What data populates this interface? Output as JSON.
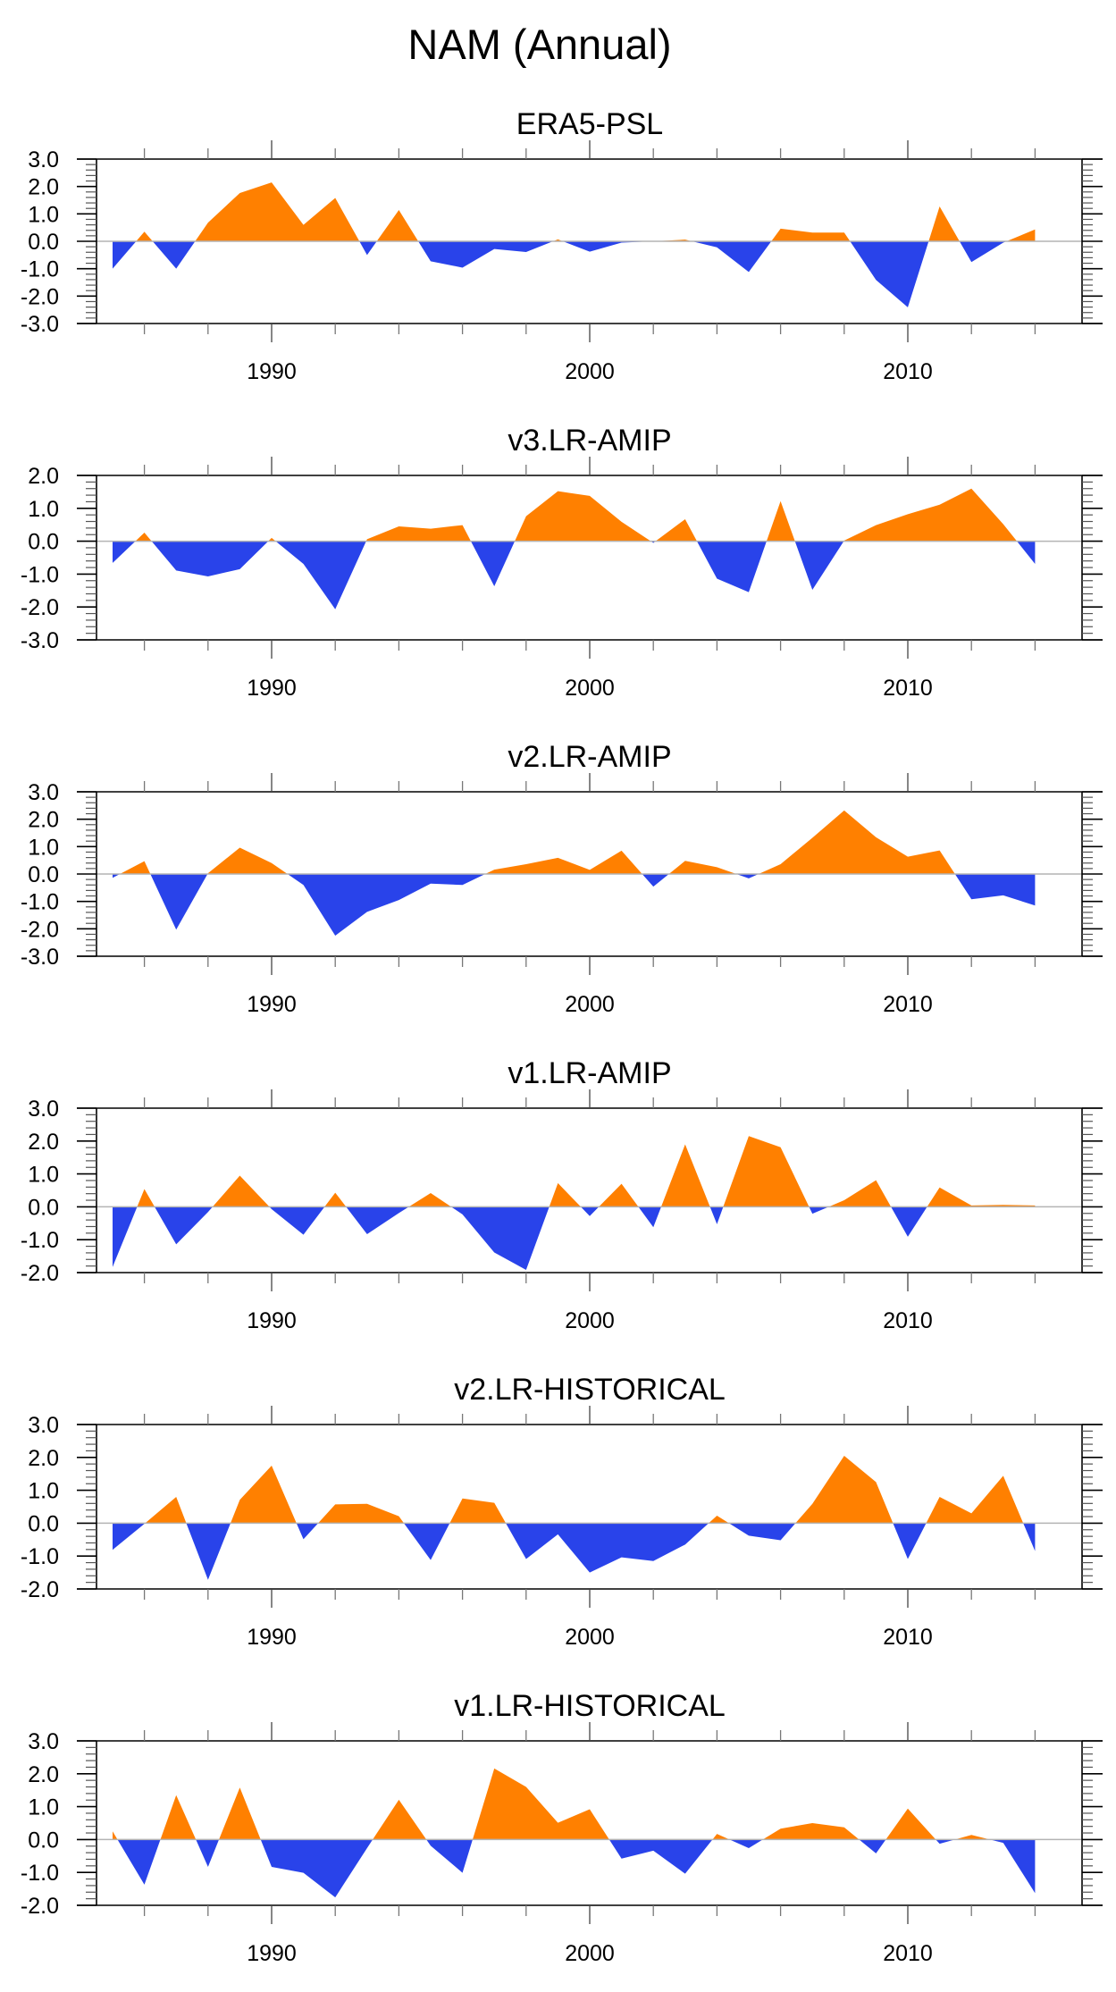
{
  "figure": {
    "title": "NAM (Annual)"
  },
  "chart_data": [
    {
      "type": "area",
      "title": "ERA5-PSL",
      "xlabel": "",
      "ylabel": "",
      "x": [
        1985,
        1986,
        1987,
        1988,
        1989,
        1990,
        1991,
        1992,
        1993,
        1994,
        1995,
        1996,
        1997,
        1998,
        1999,
        2000,
        2001,
        2002,
        2003,
        2004,
        2005,
        2006,
        2007,
        2008,
        2009,
        2010,
        2011,
        2012,
        2013,
        2014
      ],
      "values": [
        -1.0,
        0.35,
        -1.0,
        0.68,
        1.76,
        2.15,
        0.6,
        1.58,
        -0.5,
        1.14,
        -0.73,
        -0.96,
        -0.28,
        -0.39,
        0.07,
        -0.38,
        -0.05,
        0.0,
        0.06,
        -0.22,
        -1.12,
        0.46,
        0.32,
        0.32,
        -1.41,
        -2.41,
        1.27,
        -0.76,
        -0.05,
        0.43
      ],
      "ylim": [
        -3.0,
        3.0
      ],
      "yticks": [
        "3.0",
        "2.0",
        "1.0",
        "0.0",
        "-1.0",
        "-2.0",
        "-3.0"
      ],
      "xticks": [
        "1990",
        "2000",
        "2010"
      ],
      "positive_color": "#FF8000",
      "negative_color": "#2943EA",
      "grid": false
    },
    {
      "type": "area",
      "title": "v3.LR-AMIP",
      "xlabel": "",
      "ylabel": "",
      "x": [
        1985,
        1986,
        1987,
        1988,
        1989,
        1990,
        1991,
        1992,
        1993,
        1994,
        1995,
        1996,
        1997,
        1998,
        1999,
        2000,
        2001,
        2002,
        2003,
        2004,
        2005,
        2006,
        2007,
        2008,
        2009,
        2010,
        2011,
        2012,
        2013,
        2014
      ],
      "values": [
        -0.66,
        0.26,
        -0.89,
        -1.07,
        -0.85,
        0.1,
        -0.69,
        -2.07,
        0.06,
        0.45,
        0.38,
        0.49,
        -1.37,
        0.76,
        1.52,
        1.38,
        0.59,
        -0.05,
        0.67,
        -1.14,
        -1.55,
        1.22,
        -1.48,
        0.02,
        0.49,
        0.82,
        1.11,
        1.6,
        0.52,
        -0.69
      ],
      "ylim": [
        -3.0,
        2.0
      ],
      "yticks": [
        "2.0",
        "1.0",
        "0.0",
        "-1.0",
        "-2.0",
        "-3.0"
      ],
      "xticks": [
        "1990",
        "2000",
        "2010"
      ],
      "positive_color": "#FF8000",
      "negative_color": "#2943EA",
      "grid": false
    },
    {
      "type": "area",
      "title": "v2.LR-AMIP",
      "xlabel": "",
      "ylabel": "",
      "x": [
        1985,
        1986,
        1987,
        1988,
        1989,
        1990,
        1991,
        1992,
        1993,
        1994,
        1995,
        1996,
        1997,
        1998,
        1999,
        2000,
        2001,
        2002,
        2003,
        2004,
        2005,
        2006,
        2007,
        2008,
        2009,
        2010,
        2011,
        2012,
        2013,
        2014
      ],
      "values": [
        -0.14,
        0.47,
        -2.03,
        0.03,
        0.96,
        0.4,
        -0.4,
        -2.25,
        -1.38,
        -0.95,
        -0.35,
        -0.4,
        0.16,
        0.36,
        0.59,
        0.15,
        0.85,
        -0.46,
        0.48,
        0.25,
        -0.16,
        0.36,
        1.32,
        2.32,
        1.34,
        0.63,
        0.86,
        -0.92,
        -0.78,
        -1.15
      ],
      "ylim": [
        -3.0,
        3.0
      ],
      "yticks": [
        "3.0",
        "2.0",
        "1.0",
        "0.0",
        "-1.0",
        "-2.0",
        "-3.0"
      ],
      "xticks": [
        "1990",
        "2000",
        "2010"
      ],
      "positive_color": "#FF8000",
      "negative_color": "#2943EA",
      "grid": false
    },
    {
      "type": "area",
      "title": "v1.LR-AMIP",
      "xlabel": "",
      "ylabel": "",
      "x": [
        1985,
        1986,
        1987,
        1988,
        1989,
        1990,
        1991,
        1992,
        1993,
        1994,
        1995,
        1996,
        1997,
        1998,
        1999,
        2000,
        2001,
        2002,
        2003,
        2004,
        2005,
        2006,
        2007,
        2008,
        2009,
        2010,
        2011,
        2012,
        2013,
        2014
      ],
      "values": [
        -1.83,
        0.54,
        -1.14,
        -0.16,
        0.95,
        -0.07,
        -0.85,
        0.43,
        -0.83,
        -0.19,
        0.42,
        -0.23,
        -1.39,
        -1.92,
        0.72,
        -0.28,
        0.7,
        -0.62,
        1.9,
        -0.53,
        2.15,
        1.81,
        -0.21,
        0.2,
        0.81,
        -0.91,
        0.59,
        0.04,
        0.06,
        0.04
      ],
      "ylim": [
        -2.0,
        3.0
      ],
      "yticks": [
        "3.0",
        "2.0",
        "1.0",
        "0.0",
        "-1.0",
        "-2.0"
      ],
      "xticks": [
        "1990",
        "2000",
        "2010"
      ],
      "positive_color": "#FF8000",
      "negative_color": "#2943EA",
      "grid": false
    },
    {
      "type": "area",
      "title": "v2.LR-HISTORICAL",
      "xlabel": "",
      "ylabel": "",
      "x": [
        1985,
        1986,
        1987,
        1988,
        1989,
        1990,
        1991,
        1992,
        1993,
        1994,
        1995,
        1996,
        1997,
        1998,
        1999,
        2000,
        2001,
        2002,
        2003,
        2004,
        2005,
        2006,
        2007,
        2008,
        2009,
        2010,
        2011,
        2012,
        2013,
        2014
      ],
      "values": [
        -0.81,
        -0.02,
        0.8,
        -1.72,
        0.71,
        1.75,
        -0.49,
        0.57,
        0.59,
        0.21,
        -1.12,
        0.75,
        0.62,
        -1.09,
        -0.34,
        -1.5,
        -1.04,
        -1.15,
        -0.65,
        0.23,
        -0.38,
        -0.52,
        0.59,
        2.05,
        1.25,
        -1.09,
        0.8,
        0.3,
        1.44,
        -0.85
      ],
      "ylim": [
        -2.0,
        3.0
      ],
      "yticks": [
        "3.0",
        "2.0",
        "1.0",
        "0.0",
        "-1.0",
        "-2.0"
      ],
      "xticks": [
        "1990",
        "2000",
        "2010"
      ],
      "positive_color": "#FF8000",
      "negative_color": "#2943EA",
      "grid": false
    },
    {
      "type": "area",
      "title": "v1.LR-HISTORICAL",
      "xlabel": "",
      "ylabel": "",
      "x": [
        1985,
        1986,
        1987,
        1988,
        1989,
        1990,
        1991,
        1992,
        1993,
        1994,
        1995,
        1996,
        1997,
        1998,
        1999,
        2000,
        2001,
        2002,
        2003,
        2004,
        2005,
        2006,
        2007,
        2008,
        2009,
        2010,
        2011,
        2012,
        2013,
        2014
      ],
      "values": [
        0.25,
        -1.37,
        1.35,
        -0.83,
        1.58,
        -0.83,
        -1.01,
        -1.76,
        -0.26,
        1.21,
        -0.19,
        -1.01,
        2.16,
        1.6,
        0.51,
        0.92,
        -0.58,
        -0.34,
        -1.04,
        0.17,
        -0.26,
        0.33,
        0.5,
        0.37,
        -0.42,
        0.94,
        -0.13,
        0.14,
        -0.1,
        -1.63
      ],
      "ylim": [
        -2.0,
        3.0
      ],
      "yticks": [
        "3.0",
        "2.0",
        "1.0",
        "0.0",
        "-1.0",
        "-2.0"
      ],
      "xticks": [
        "1990",
        "2000",
        "2010"
      ],
      "positive_color": "#FF8000",
      "negative_color": "#2943EA",
      "grid": false
    }
  ]
}
